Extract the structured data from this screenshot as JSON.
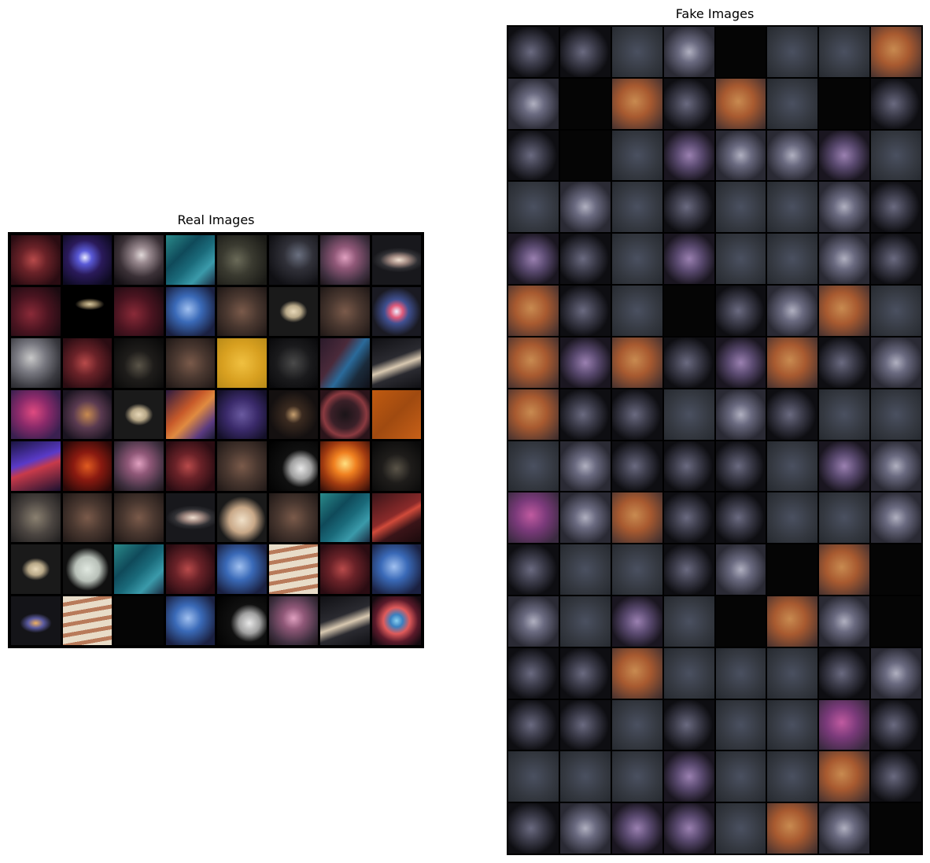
{
  "real_panel": {
    "title": "Real Images",
    "rows": 8,
    "cols": 8,
    "tiles": [
      "nebula-red",
      "galaxy-blue",
      "spiral-grey",
      "nebula-teal",
      "starfield-dust",
      "nebula-dark",
      "nebula-pink",
      "galaxy-oval",
      "nebula-crimson",
      "saturn-black",
      "nebula-crimson",
      "nebula-blue",
      "dust-brown",
      "saturn",
      "dust-brown",
      "planetary-nebula",
      "nebula-grey",
      "nebula-red",
      "starfield-dark",
      "dust-brown",
      "sun-yellow",
      "cluster-dark",
      "streak-blue",
      "galaxy-edge",
      "nebula-magenta",
      "nebula-orange",
      "saturn",
      "nebula-fire",
      "nebula-purple",
      "galaxy-dark",
      "supernova-remnant",
      "surface-orange",
      "nebula-blue-red",
      "fire-red",
      "nebula-pink",
      "nebula-red",
      "dust-brown",
      "moon-crescent",
      "explosion-orange",
      "starfield-dark",
      "dust-grey",
      "dust-brown",
      "dust-brown",
      "galaxy-oval",
      "jupiter",
      "dust-brown",
      "nebula-teal",
      "streak-red",
      "saturn",
      "mars",
      "nebula-teal",
      "nebula-red",
      "nebula-blue",
      "jupiter-bands",
      "nebula-red",
      "nebula-blue",
      "galaxy-spiral",
      "jupiter-bands",
      "black",
      "nebula-blue",
      "moon-crescent",
      "nebula-pink",
      "galaxy-edge",
      "helix-nebula"
    ]
  },
  "fake_panel": {
    "title": "Fake Images",
    "rows": 16,
    "cols": 8,
    "tiles": [
      "blob-dark",
      "blob-dark",
      "blob-flat",
      "blob-grey",
      "black",
      "blob-flat",
      "blob-flat",
      "blob-orange",
      "blob-grey",
      "black",
      "blob-orange",
      "blob-dark",
      "blob-orange",
      "blob-flat",
      "black",
      "blob-dark",
      "blob-dark",
      "black",
      "blob-flat",
      "blob-purple",
      "blob-grey",
      "blob-grey",
      "blob-purple",
      "blob-flat",
      "blob-flat",
      "blob-grey",
      "blob-flat",
      "blob-dark",
      "blob-flat",
      "blob-flat",
      "blob-grey",
      "blob-dark",
      "blob-purple",
      "blob-dark",
      "blob-flat",
      "blob-purple",
      "blob-flat",
      "blob-flat",
      "blob-grey",
      "blob-dark",
      "blob-orange",
      "blob-dark",
      "blob-flat",
      "black",
      "blob-dark",
      "blob-grey",
      "blob-orange",
      "blob-flat",
      "blob-orange",
      "blob-purple",
      "blob-orange",
      "blob-dark",
      "blob-purple",
      "blob-orange",
      "blob-dark",
      "blob-grey",
      "blob-orange",
      "blob-dark",
      "blob-dark",
      "blob-flat",
      "blob-grey",
      "blob-dark",
      "blob-flat",
      "blob-flat",
      "blob-flat",
      "blob-grey",
      "blob-dark",
      "blob-dark",
      "blob-dark",
      "blob-flat",
      "blob-purple",
      "blob-grey",
      "blob-magenta",
      "blob-grey",
      "blob-orange",
      "blob-dark",
      "blob-dark",
      "blob-flat",
      "blob-flat",
      "blob-grey",
      "blob-dark",
      "blob-flat",
      "blob-flat",
      "blob-dark",
      "blob-grey",
      "black",
      "blob-orange",
      "black",
      "blob-grey",
      "blob-flat",
      "blob-purple",
      "blob-flat",
      "black",
      "blob-orange",
      "blob-grey",
      "black",
      "blob-dark",
      "blob-dark",
      "blob-orange",
      "blob-flat",
      "blob-flat",
      "blob-flat",
      "blob-dark",
      "blob-grey",
      "blob-dark",
      "blob-dark",
      "blob-flat",
      "blob-dark",
      "blob-flat",
      "blob-flat",
      "blob-magenta",
      "blob-dark",
      "blob-flat",
      "blob-flat",
      "blob-flat",
      "blob-purple",
      "blob-flat",
      "blob-flat",
      "blob-orange",
      "blob-dark",
      "blob-dark",
      "blob-grey",
      "blob-purple",
      "blob-purple",
      "blob-flat",
      "blob-orange",
      "blob-grey",
      "black"
    ]
  }
}
